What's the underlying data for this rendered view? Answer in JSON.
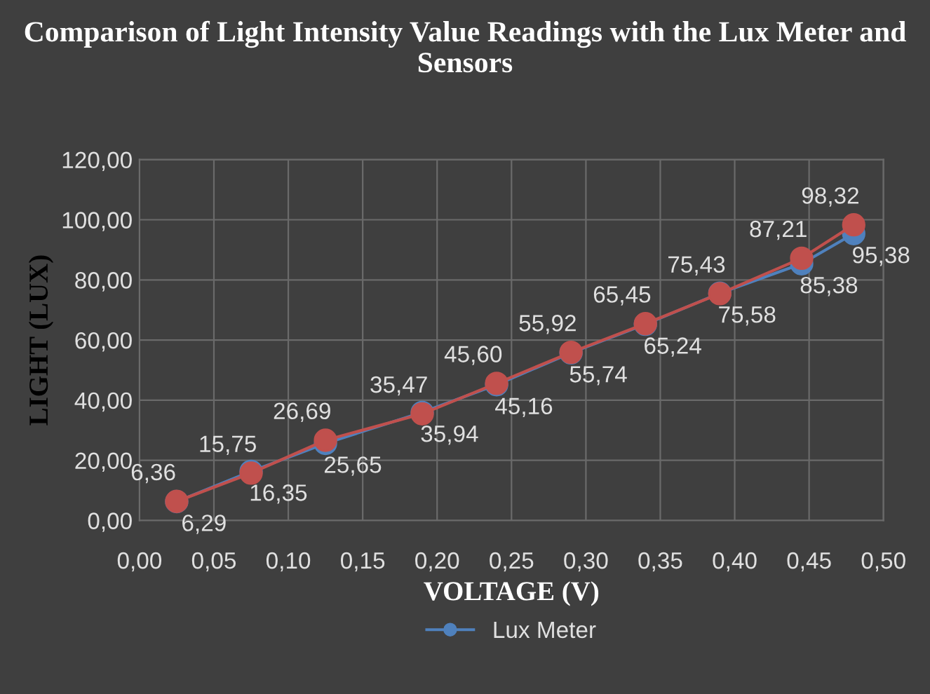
{
  "chart_data": {
    "type": "line",
    "title": "Comparison of Light Intensity Value Readings with the Lux Meter and Sensors",
    "xlabel": "VOLTAGE (V)",
    "ylabel": "LIGHT (LUX)",
    "x": [
      0.025,
      0.075,
      0.125,
      0.19,
      0.24,
      0.29,
      0.34,
      0.39,
      0.445,
      0.48
    ],
    "series": [
      {
        "name": "Lux Meter",
        "color": "#4f81bd",
        "values": [
          6.29,
          16.35,
          25.65,
          35.94,
          45.16,
          55.74,
          65.24,
          75.58,
          85.38,
          95.38
        ],
        "value_labels": [
          "6,29",
          "16,35",
          "25,65",
          "35,94",
          "45,16",
          "55,74",
          "65,24",
          "75,58",
          "85,38",
          "95,38"
        ]
      },
      {
        "color": "#c0504d",
        "values": [
          6.36,
          15.75,
          26.69,
          35.47,
          45.6,
          55.92,
          65.45,
          75.43,
          87.21,
          98.32
        ],
        "value_labels": [
          "6,36",
          "15,75",
          "26,69",
          "35,47",
          "45,60",
          "55,92",
          "65,45",
          "75,43",
          "87,21",
          "98,32"
        ]
      }
    ],
    "xlim": [
      0,
      0.5
    ],
    "xticks": [
      {
        "value": 0,
        "label": "0,00"
      },
      {
        "value": 0.05,
        "label": "0,05"
      },
      {
        "value": 0.1,
        "label": "0,10"
      },
      {
        "value": 0.15,
        "label": "0,15"
      },
      {
        "value": 0.2,
        "label": "0,20"
      },
      {
        "value": 0.25,
        "label": "0,25"
      },
      {
        "value": 0.3,
        "label": "0,30"
      },
      {
        "value": 0.35,
        "label": "0,35"
      },
      {
        "value": 0.4,
        "label": "0,40"
      },
      {
        "value": 0.45,
        "label": "0,45"
      },
      {
        "value": 0.5,
        "label": "0,50"
      }
    ],
    "ylim": [
      0,
      120
    ],
    "yticks": [
      {
        "value": 0,
        "label": "0,00"
      },
      {
        "value": 20,
        "label": "20,00"
      },
      {
        "value": 40,
        "label": "40,00"
      },
      {
        "value": 60,
        "label": "60,00"
      },
      {
        "value": 80,
        "label": "80,00"
      },
      {
        "value": 100,
        "label": "100,00"
      },
      {
        "value": 120,
        "label": "120,00"
      }
    ],
    "grid": true,
    "legend": "bottom",
    "marker": "circle",
    "line_style": "solid"
  }
}
